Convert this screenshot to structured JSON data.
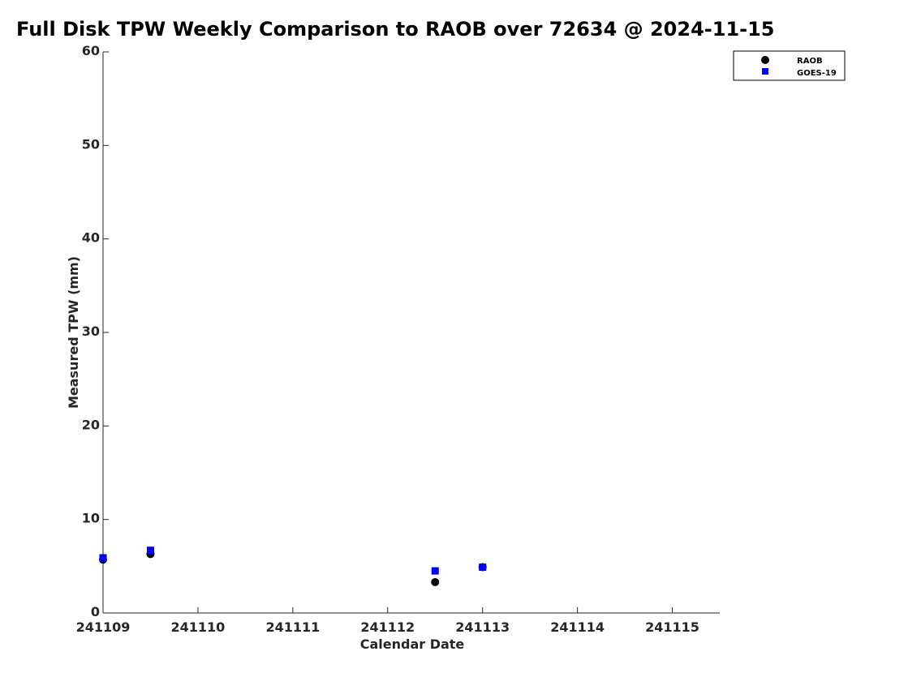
{
  "chart_data": {
    "type": "scatter",
    "title": "Full Disk TPW Weekly Comparison to RAOB over 72634 @ 2024-11-15",
    "xlabel": "Calendar Date",
    "ylabel": "Measured TPW (mm)",
    "xlim": [
      0,
      6.5
    ],
    "ylim": [
      0,
      60
    ],
    "x_tick_values": [
      0,
      1,
      2,
      3,
      4,
      5,
      6
    ],
    "x_tick_labels": [
      "241109",
      "241110",
      "241111",
      "241112",
      "241113",
      "241114",
      "241115"
    ],
    "y_ticks": [
      0,
      10,
      20,
      30,
      40,
      50,
      60
    ],
    "x_units": "days since 241109",
    "grid": false,
    "legend_position": "top-right, outside plot",
    "series": [
      {
        "name": "RAOB",
        "marker": "circle",
        "color": "#000000",
        "x": [
          0,
          0.5,
          3.5,
          4.0
        ],
        "y": [
          5.7,
          6.3,
          3.3,
          4.9
        ]
      },
      {
        "name": "GOES-19",
        "marker": "square",
        "color": "#0000ff",
        "x": [
          0,
          0.5,
          3.5,
          4.0
        ],
        "y": [
          5.9,
          6.7,
          4.5,
          4.9
        ]
      }
    ]
  }
}
